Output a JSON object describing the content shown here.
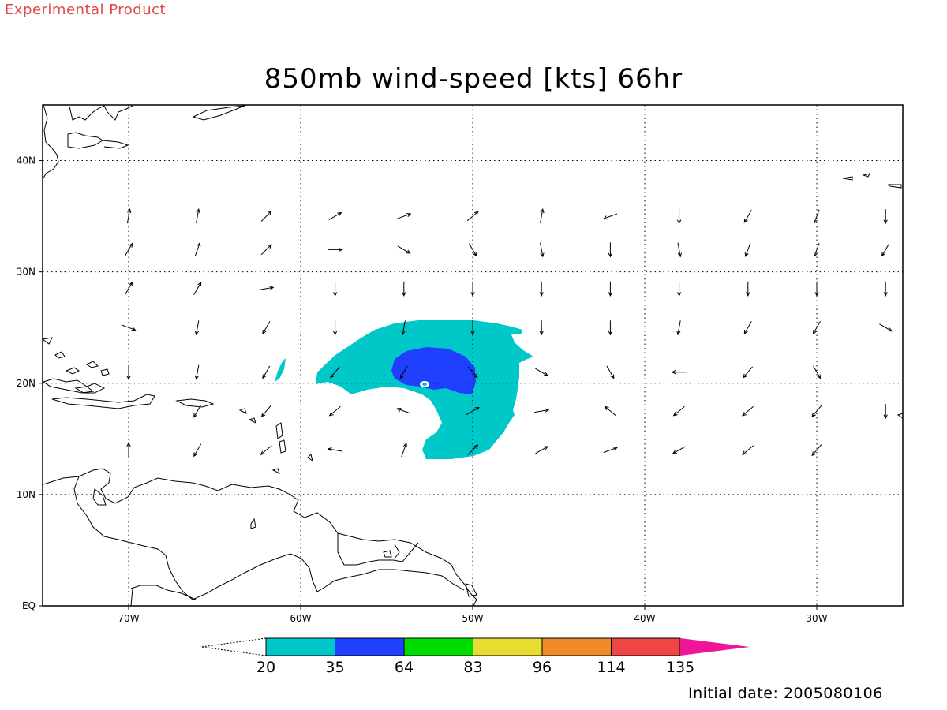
{
  "header": {
    "product_label": "Experimental Product",
    "title": "850mb wind-speed [kts] 66hr"
  },
  "footer": {
    "initial_date": "Initial date: 2005080106"
  },
  "map": {
    "lon_range": [
      -75,
      -25
    ],
    "lat_range": [
      0,
      45
    ],
    "lat_labels": [
      {
        "lat": 40,
        "label": "40N"
      },
      {
        "lat": 30,
        "label": "30N"
      },
      {
        "lat": 20,
        "label": "20N"
      },
      {
        "lat": 10,
        "label": "10N"
      },
      {
        "lat": 0,
        "label": "EQ"
      }
    ],
    "lon_labels": [
      {
        "lon": -70,
        "label": "70W"
      },
      {
        "lon": -60,
        "label": "60W"
      },
      {
        "lon": -50,
        "label": "50W"
      },
      {
        "lon": -40,
        "label": "40W"
      },
      {
        "lon": -30,
        "label": "30W"
      }
    ],
    "grid_lines": "dotted",
    "wind_vectors": {
      "lon": [
        -70,
        -66,
        -62,
        -58,
        -54,
        -50,
        -46,
        -42,
        -38,
        -34,
        -30,
        -26
      ],
      "lat": [
        35,
        32,
        28.5,
        25,
        21,
        17.5,
        14
      ],
      "direction_deg": [
        [
          80,
          80,
          45,
          30,
          20,
          40,
          80,
          200,
          270,
          240,
          250,
          270
        ],
        [
          60,
          70,
          45,
          0,
          330,
          300,
          280,
          270,
          280,
          250,
          250,
          240
        ],
        [
          60,
          60,
          10,
          270,
          270,
          270,
          270,
          270,
          270,
          270,
          270,
          270
        ],
        [
          340,
          260,
          240,
          270,
          260,
          270,
          270,
          270,
          260,
          240,
          240,
          330
        ],
        [
          270,
          260,
          240,
          230,
          240,
          310,
          330,
          300,
          180,
          230,
          300,
          null
        ],
        [
          null,
          240,
          230,
          220,
          160,
          30,
          10,
          140,
          220,
          220,
          230,
          270
        ],
        [
          90,
          240,
          220,
          170,
          70,
          45,
          30,
          20,
          210,
          220,
          230,
          null
        ]
      ]
    }
  },
  "colorbar": {
    "levels": [
      "20",
      "35",
      "64",
      "83",
      "96",
      "114",
      "135"
    ],
    "colors": [
      "#00c8c8",
      "#2040ff",
      "#00dc00",
      "#e6dc32",
      "#f08c28",
      "#f04646",
      "#f01496"
    ],
    "low_end": "open-triangle",
    "high_end_color": "#f01496"
  },
  "styles": {
    "product_label_color": "#e0464a",
    "wind_20_35_color": "#00c8c8",
    "wind_35_64_color": "#2040ff"
  }
}
